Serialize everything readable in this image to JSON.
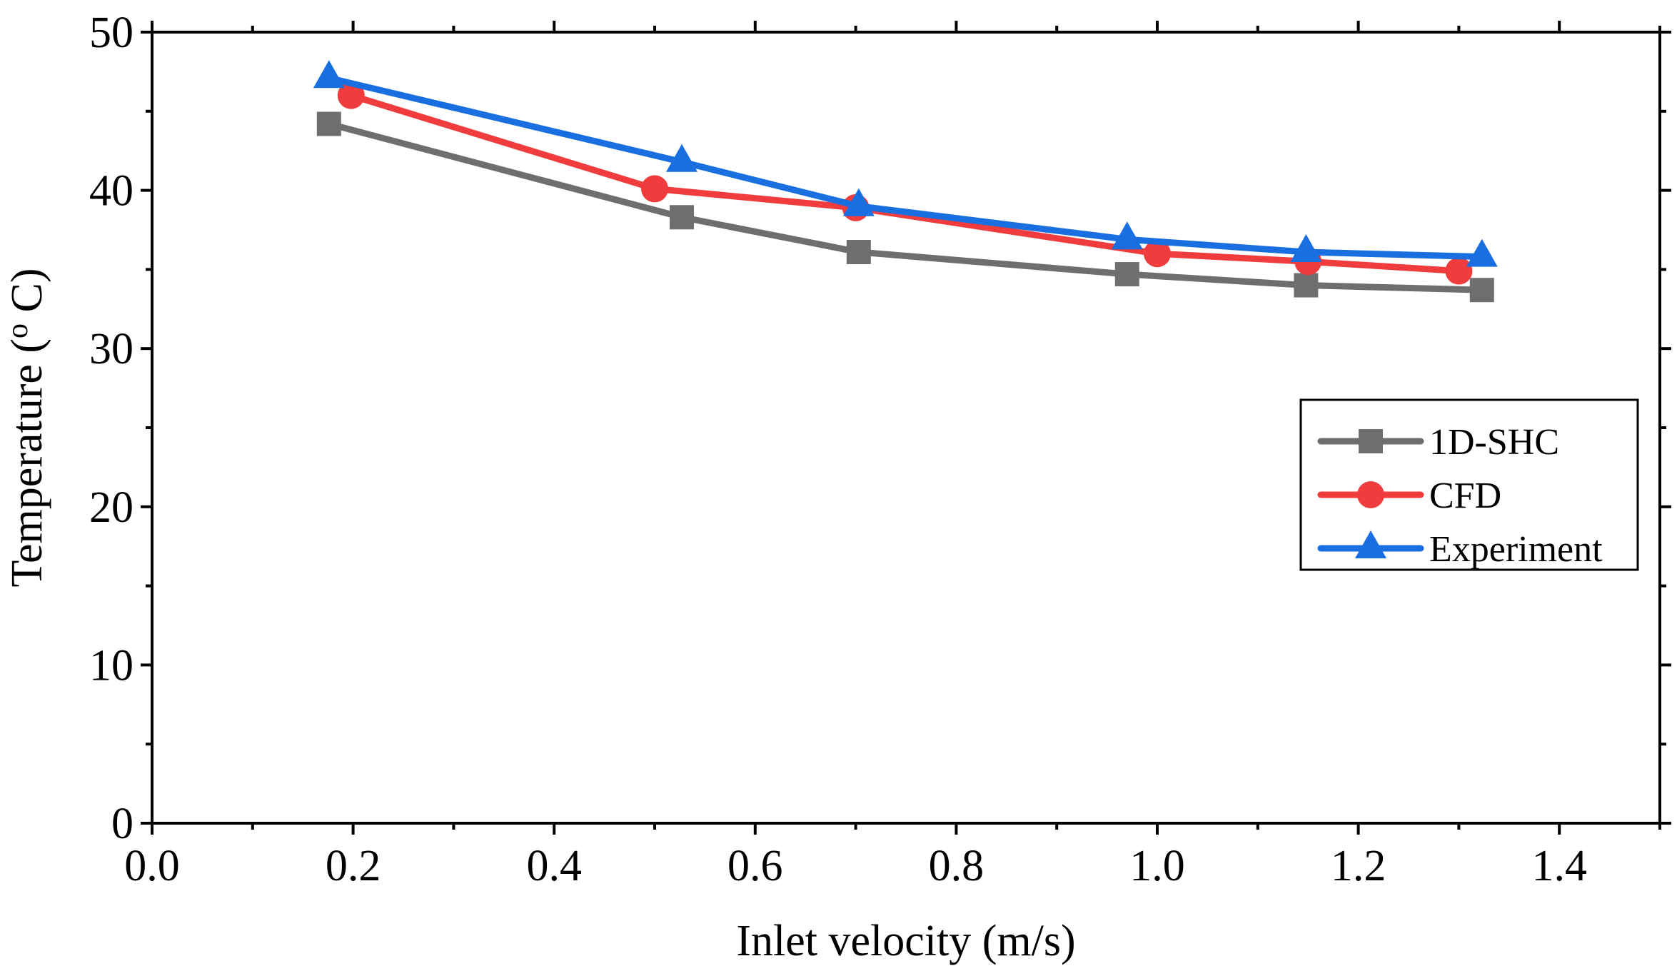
{
  "chart_data": {
    "type": "line",
    "title": "",
    "xlabel": "Inlet velocity (m/s)",
    "ylabel_parts": {
      "before": "Temperature (",
      "sup": "o",
      "after": " C)"
    },
    "xlim": [
      0.0,
      1.5
    ],
    "ylim": [
      0,
      50
    ],
    "x_ticks": [
      0.0,
      0.2,
      0.4,
      0.6,
      0.8,
      1.0,
      1.2,
      1.4
    ],
    "x_tick_labels": [
      "0.0",
      "0.2",
      "0.4",
      "0.6",
      "0.8",
      "1.0",
      "1.2",
      "1.4"
    ],
    "y_ticks": [
      0,
      10,
      20,
      30,
      40,
      50
    ],
    "y_tick_labels": [
      "0",
      "10",
      "20",
      "30",
      "40",
      "50"
    ],
    "grid": false,
    "legend_position": "center-right",
    "series": [
      {
        "name": "1D-SHC",
        "color": "#6e6e6e",
        "marker": "square",
        "x": [
          0.176,
          0.527,
          0.703,
          0.97,
          1.148,
          1.323
        ],
        "y": [
          44.2,
          38.3,
          36.1,
          34.7,
          34.0,
          33.7
        ]
      },
      {
        "name": "CFD",
        "color": "#f03c3c",
        "marker": "circle",
        "x": [
          0.198,
          0.5,
          0.7,
          1.0,
          1.15,
          1.3
        ],
        "y": [
          46.0,
          40.1,
          38.9,
          36.0,
          35.5,
          34.9
        ]
      },
      {
        "name": "Experiment",
        "color": "#1a6fe0",
        "marker": "triangle",
        "x": [
          0.176,
          0.527,
          0.703,
          0.97,
          1.148,
          1.323
        ],
        "y": [
          47.1,
          41.8,
          39.0,
          36.9,
          36.1,
          35.8
        ]
      }
    ]
  }
}
